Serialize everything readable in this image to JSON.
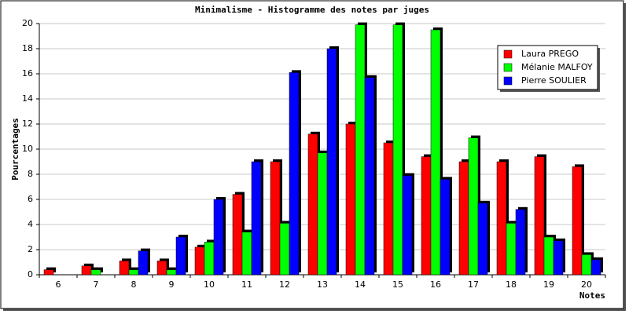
{
  "chart_data": {
    "type": "bar",
    "title": "Minimalisme - Histogramme des notes par juges",
    "x_label": "Notes",
    "y_label": "Pourcentages",
    "categories": [
      "6",
      "7",
      "8",
      "9",
      "10",
      "11",
      "12",
      "13",
      "14",
      "15",
      "16",
      "17",
      "18",
      "19",
      "20"
    ],
    "series": [
      {
        "name": "Laura PREGO",
        "color": "#ff0000",
        "values": [
          0.4,
          0.7,
          1.1,
          1.1,
          2.2,
          6.4,
          9.0,
          11.2,
          12.0,
          10.5,
          9.4,
          9.0,
          9.0,
          9.4,
          8.6
        ]
      },
      {
        "name": "Mélanie MALFOY",
        "color": "#00ff00",
        "values": [
          0,
          0.4,
          0.4,
          0.4,
          2.6,
          3.4,
          4.1,
          9.7,
          19.9,
          19.9,
          19.5,
          10.9,
          4.1,
          3.0,
          1.6
        ]
      },
      {
        "name": "Pierre SOULIER",
        "color": "#0000ff",
        "values": [
          0,
          0,
          1.9,
          3.0,
          6.0,
          9.0,
          16.1,
          18.0,
          15.7,
          7.9,
          7.6,
          5.7,
          5.2,
          2.7,
          1.2
        ]
      }
    ],
    "ylim": [
      0,
      20
    ],
    "yticks": [
      0,
      2,
      4,
      6,
      8,
      10,
      12,
      14,
      16,
      18,
      20
    ],
    "grid": true
  }
}
